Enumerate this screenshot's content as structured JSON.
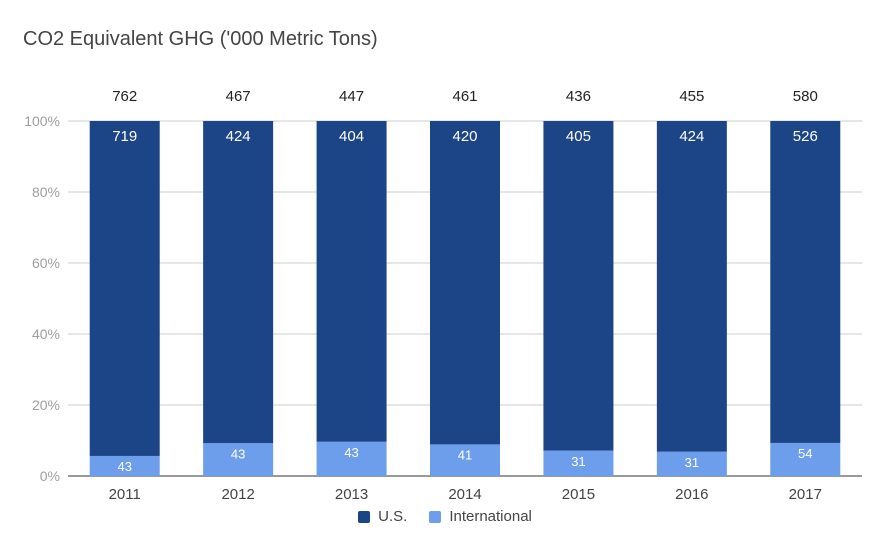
{
  "chart_data": {
    "type": "bar",
    "stacked": true,
    "normalized": true,
    "title": "CO2 Equivalent GHG ('000 Metric Tons)",
    "categories": [
      "2011",
      "2012",
      "2013",
      "2014",
      "2015",
      "2016",
      "2017"
    ],
    "series": [
      {
        "name": "U.S.",
        "color": "#1c4587",
        "values": [
          719,
          424,
          404,
          420,
          405,
          424,
          526
        ]
      },
      {
        "name": "International",
        "color": "#6d9eeb",
        "values": [
          43,
          43,
          43,
          41,
          31,
          31,
          54
        ]
      }
    ],
    "totals": [
      762,
      467,
      447,
      461,
      436,
      455,
      580
    ],
    "y_ticks": [
      "0%",
      "20%",
      "40%",
      "60%",
      "80%",
      "100%"
    ],
    "ylim": [
      0,
      100
    ],
    "grid": true,
    "legend_position": "bottom"
  }
}
